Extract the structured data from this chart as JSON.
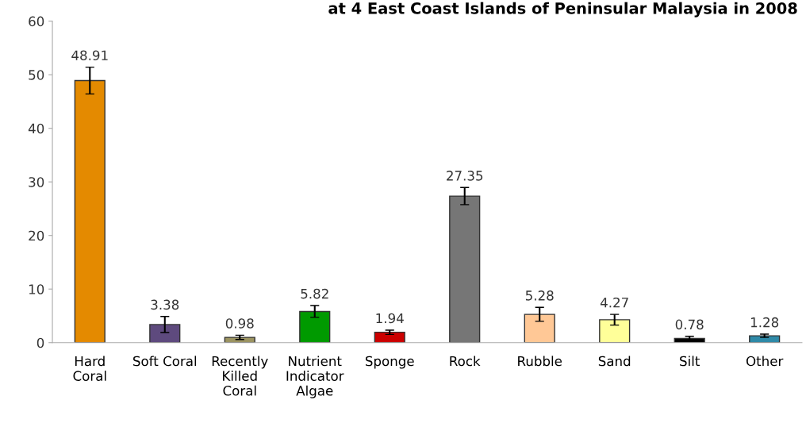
{
  "chart_data": {
    "type": "bar",
    "title": "at 4 East Coast Islands of Peninsular Malaysia in 2008",
    "categories": [
      "Hard\nCoral",
      "Soft Coral",
      "Recently\nKilled\nCoral",
      "Nutrient\nIndicator\nAlgae",
      "Sponge",
      "Rock",
      "Rubble",
      "Sand",
      "Silt",
      "Other"
    ],
    "values": [
      48.91,
      3.38,
      0.98,
      5.82,
      1.94,
      27.35,
      5.28,
      4.27,
      0.78,
      1.28
    ],
    "errors": [
      2.5,
      1.5,
      0.4,
      1.1,
      0.4,
      1.6,
      1.3,
      1.0,
      0.4,
      0.3
    ],
    "colors": [
      "#e48a00",
      "#5e4a7e",
      "#9c9462",
      "#009a00",
      "#cc0000",
      "#767676",
      "#ffc896",
      "#ffff99",
      "#000000",
      "#2f8aa8"
    ],
    "data_labels": true,
    "ylim": [
      0,
      60
    ],
    "yticks": [
      0,
      10,
      20,
      30,
      40,
      50,
      60
    ],
    "grid": false,
    "legend": false
  }
}
